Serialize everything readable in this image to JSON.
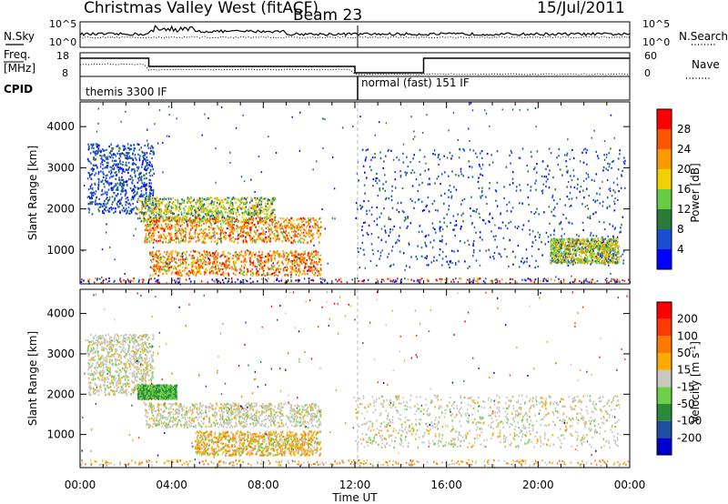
{
  "header": {
    "title": "Christmas Valley West (fitACF)",
    "beam": "Beam 23",
    "date": "15/Jul/2011"
  },
  "top_panels": {
    "nsky_label": "N.Sky",
    "nsky_ticks": [
      "10^5",
      "10^0"
    ],
    "nsearch_label": "N.Search",
    "nsearch_ticks": [
      "10^5",
      "10^0"
    ],
    "freq_label_1": "Freq.",
    "freq_label_2": "[MHz]",
    "freq_ticks": [
      "18",
      "8"
    ],
    "nave_label": "Nave",
    "nave_ticks": [
      "60",
      "0"
    ],
    "cpid_label": "CPID",
    "cpid_segments": [
      "themis 3300 IF",
      "normal (fast) 151 IF"
    ]
  },
  "chart_data": [
    {
      "type": "heatmap",
      "panel": "power",
      "ylabel": "Slant Range [km]",
      "xlabel": "Time UT",
      "x_ticks": [
        "00:00",
        "04:00",
        "08:00",
        "12:00",
        "16:00",
        "20:00",
        "00:00"
      ],
      "x_range_hours": [
        0,
        24
      ],
      "y_ticks": [
        1000,
        2000,
        3000,
        4000
      ],
      "ylim": [
        180,
        4600
      ],
      "colorbar": {
        "label": "Power [dB]",
        "ticks": [
          "4",
          "8",
          "12",
          "16",
          "20",
          "24",
          "28"
        ],
        "range": [
          0,
          32
        ],
        "colors": [
          "#0000ff",
          "#1a4fd0",
          "#2a7a3a",
          "#66cc44",
          "#f0d000",
          "#ff9900",
          "#ff5500",
          "#ff0000"
        ]
      },
      "regions": [
        {
          "name": "early-arc",
          "t": [
            0.3,
            3.2
          ],
          "r": [
            1900,
            3600
          ],
          "level": "low"
        },
        {
          "name": "band-2000",
          "t": [
            2.5,
            8.5
          ],
          "r": [
            1700,
            2300
          ],
          "level": "mid"
        },
        {
          "name": "band-1500",
          "t": [
            2.8,
            10.5
          ],
          "r": [
            1200,
            1800
          ],
          "level": "high"
        },
        {
          "name": "band-700",
          "t": [
            3.0,
            10.5
          ],
          "r": [
            400,
            1000
          ],
          "level": "high"
        },
        {
          "name": "night-scatter",
          "t": [
            12.0,
            23.8
          ],
          "r": [
            600,
            3500
          ],
          "level": "low"
        },
        {
          "name": "late-band",
          "t": [
            20.5,
            23.5
          ],
          "r": [
            700,
            1300
          ],
          "level": "mid"
        }
      ]
    },
    {
      "type": "heatmap",
      "panel": "velocity",
      "ylabel": "Slant Range [km]",
      "xlabel": "Time UT",
      "x_ticks": [
        "00:00",
        "04:00",
        "08:00",
        "12:00",
        "16:00",
        "20:00",
        "00:00"
      ],
      "x_range_hours": [
        0,
        24
      ],
      "y_ticks": [
        1000,
        2000,
        3000,
        4000
      ],
      "ylim": [
        180,
        4600
      ],
      "colorbar": {
        "label": "Velocity [m s^-1]",
        "ticks": [
          "200",
          "100",
          "50",
          "15",
          "-15",
          "-50",
          "-100",
          "-200"
        ],
        "colors": [
          "#0000cc",
          "#1f4fa0",
          "#2a8a3a",
          "#6ed04a",
          "#c8c8c0",
          "#ffaa00",
          "#ff7a00",
          "#ff3a00",
          "#ff0000"
        ]
      },
      "regions": [
        {
          "name": "early-arc",
          "t": [
            0.3,
            3.2
          ],
          "r": [
            2000,
            3500
          ],
          "level": "gray"
        },
        {
          "name": "green-patch",
          "t": [
            2.5,
            4.2
          ],
          "r": [
            1900,
            2250
          ],
          "level": "green"
        },
        {
          "name": "band-1500",
          "t": [
            2.8,
            10.5
          ],
          "r": [
            1200,
            1800
          ],
          "level": "gray"
        },
        {
          "name": "band-700-orange",
          "t": [
            5.0,
            10.5
          ],
          "r": [
            500,
            1100
          ],
          "level": "orange"
        },
        {
          "name": "night-gray",
          "t": [
            12.0,
            23.5
          ],
          "r": [
            700,
            2000
          ],
          "level": "gray"
        }
      ]
    }
  ]
}
